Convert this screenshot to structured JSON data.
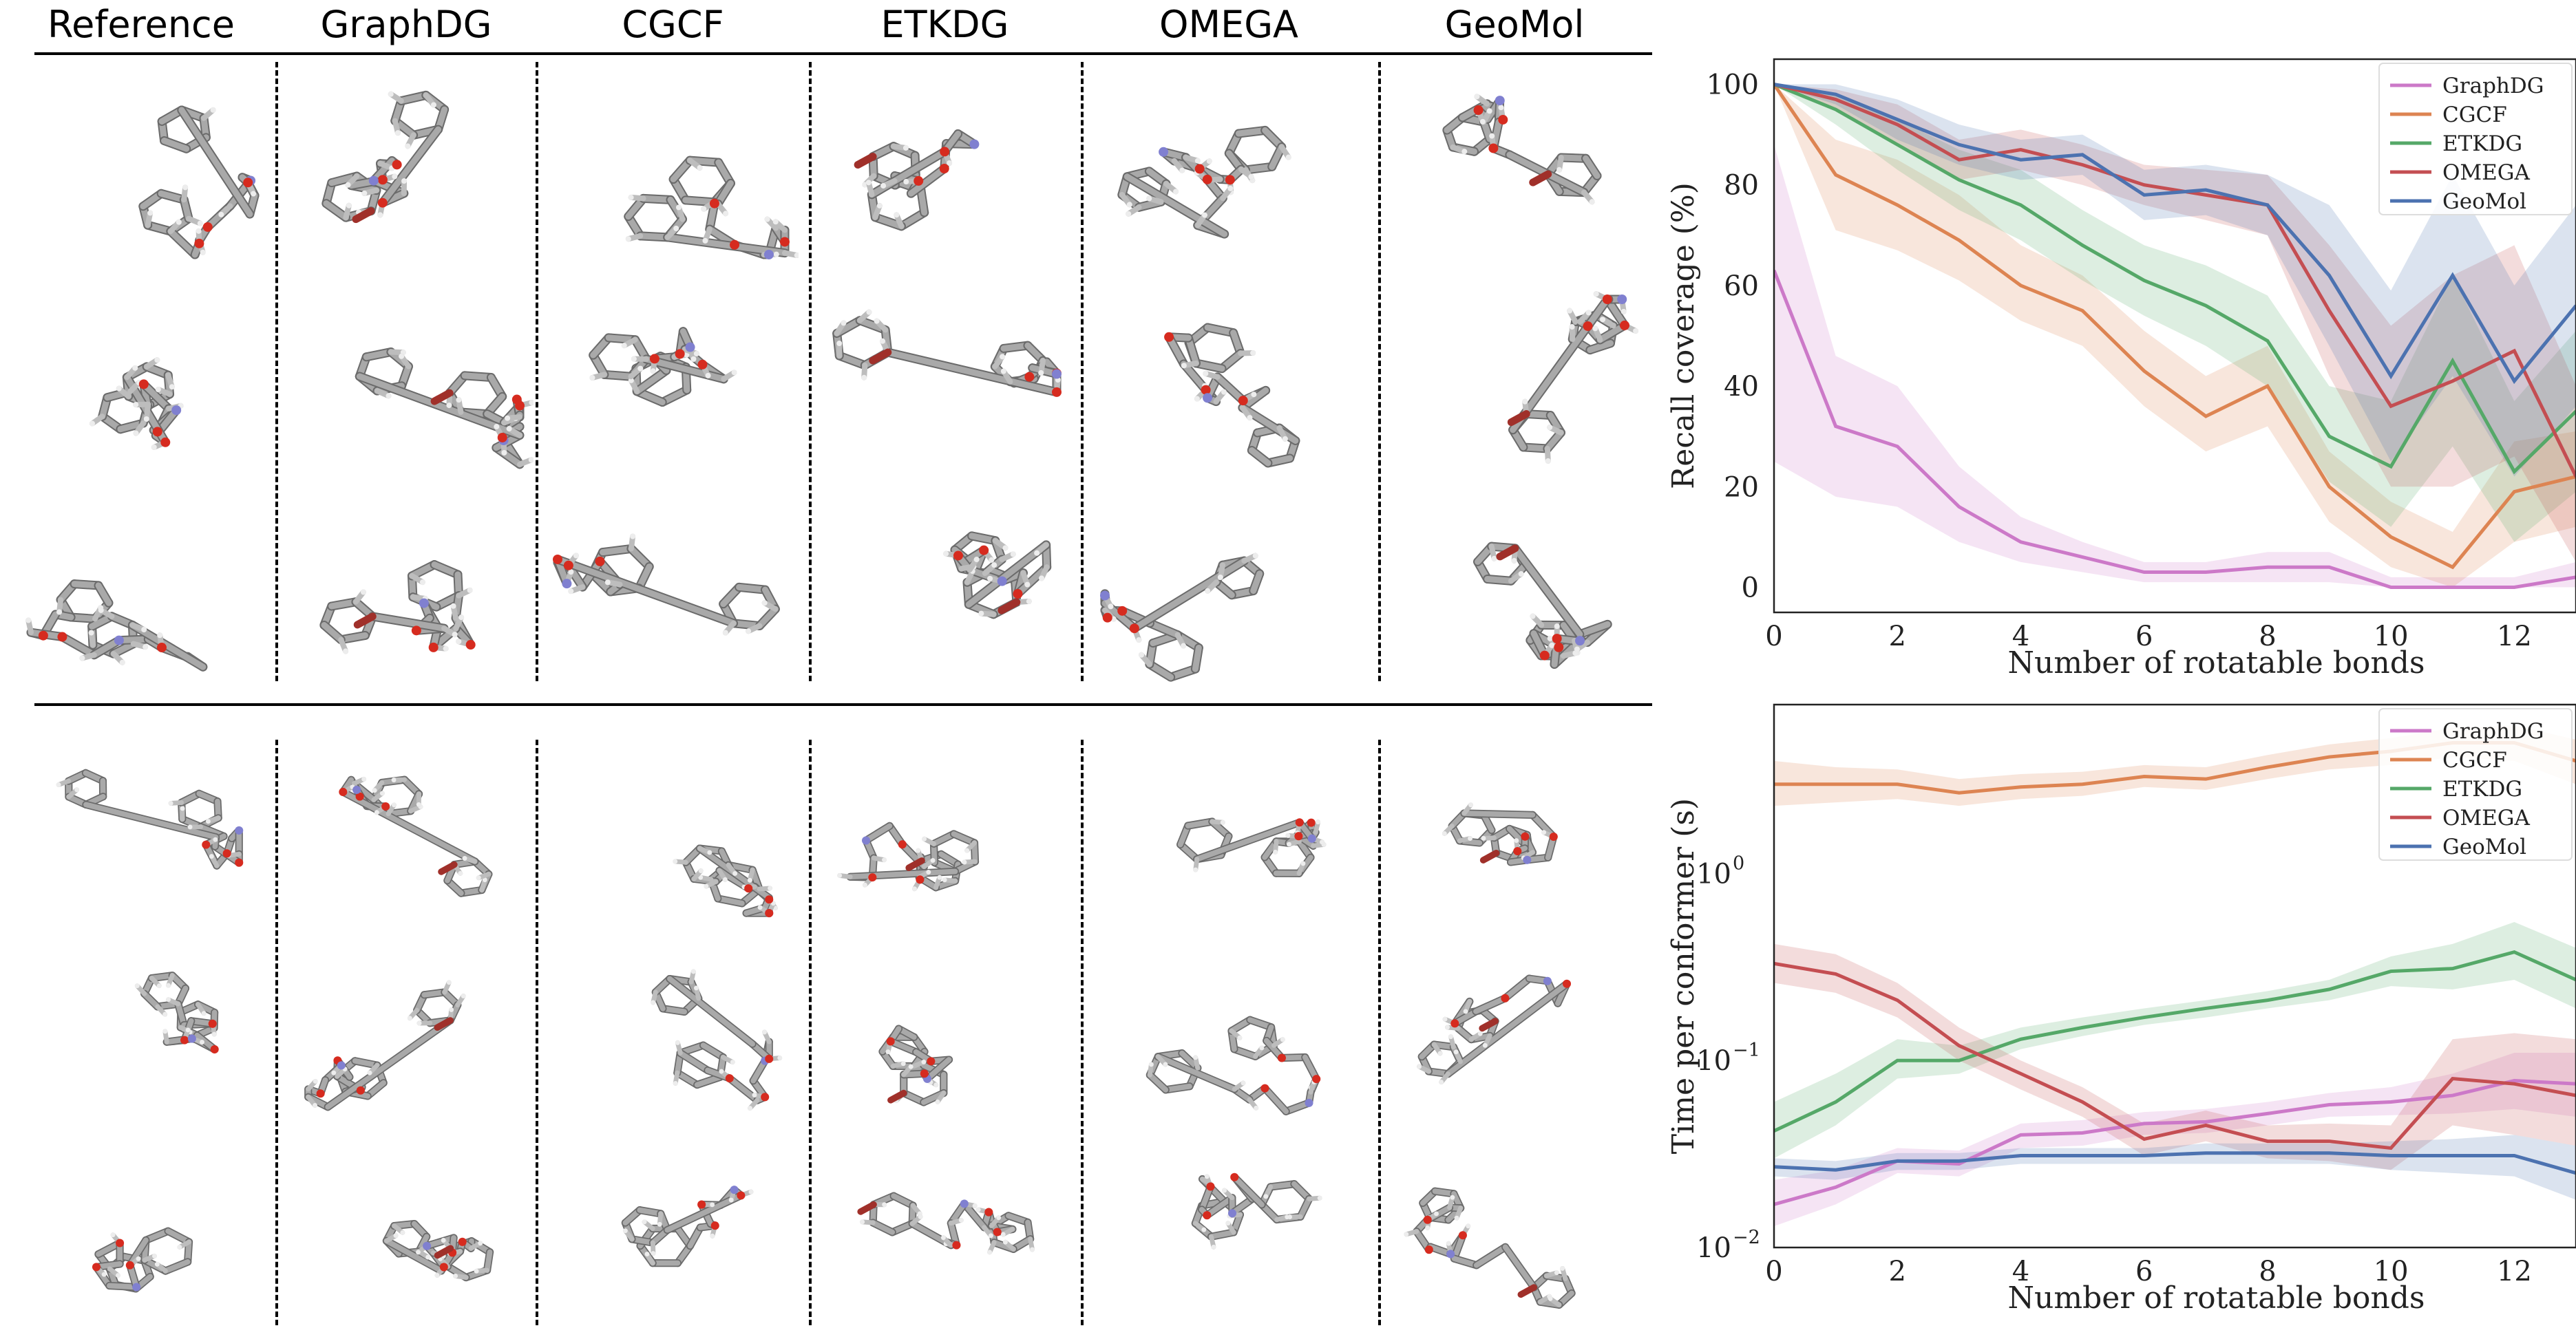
{
  "columns": [
    "Reference",
    "GraphDG",
    "CGCF",
    "ETKDG",
    "OMEGA",
    "GeoMol"
  ],
  "colors": {
    "GraphDG": "#cc79c8",
    "CGCF": "#dd8452",
    "ETKDG": "#55a868",
    "OMEGA": "#c44e52",
    "GeoMol": "#4c72b0",
    "carbon": "#a9a9a9",
    "hydrogen": "#ededed",
    "oxygen": "#d62b1f",
    "nitrogen": "#8080d0",
    "bromine": "#a0302a"
  },
  "chart_data": [
    {
      "type": "line",
      "xlabel": "Number of rotatable bonds",
      "ylabel": "Recall coverage (%)",
      "xlim": [
        0,
        13
      ],
      "ylim": [
        -5,
        105
      ],
      "xticks": [
        0,
        2,
        4,
        6,
        8,
        10,
        12
      ],
      "yticks": [
        0,
        20,
        40,
        60,
        80,
        100
      ],
      "legend": "top-right",
      "grid": false,
      "x": [
        0,
        1,
        2,
        3,
        4,
        5,
        6,
        7,
        8,
        9,
        10,
        11,
        12,
        13
      ],
      "series": [
        {
          "name": "GraphDG",
          "values": [
            63,
            32,
            28,
            16,
            9,
            6,
            3,
            3,
            4,
            4,
            0,
            0,
            0,
            2
          ],
          "lower": [
            25,
            18,
            16,
            9,
            5,
            3,
            1,
            1,
            1,
            1,
            0,
            0,
            0,
            0
          ],
          "upper": [
            88,
            46,
            40,
            24,
            14,
            9,
            5,
            5,
            7,
            7,
            2,
            2,
            2,
            5
          ]
        },
        {
          "name": "CGCF",
          "values": [
            100,
            82,
            76,
            69,
            60,
            55,
            43,
            34,
            40,
            20,
            10,
            4,
            19,
            22
          ],
          "lower": [
            100,
            71,
            67,
            61,
            53,
            48,
            36,
            27,
            32,
            13,
            4,
            0,
            9,
            12
          ],
          "upper": [
            100,
            89,
            85,
            78,
            68,
            62,
            51,
            42,
            48,
            27,
            17,
            11,
            29,
            31
          ]
        },
        {
          "name": "ETKDG",
          "values": [
            100,
            95,
            88,
            81,
            76,
            68,
            61,
            56,
            49,
            30,
            24,
            45,
            23,
            35
          ],
          "lower": [
            100,
            92,
            83,
            75,
            69,
            61,
            54,
            48,
            40,
            21,
            12,
            28,
            9,
            19
          ],
          "upper": [
            100,
            98,
            93,
            87,
            83,
            75,
            68,
            64,
            58,
            40,
            37,
            62,
            37,
            51
          ]
        },
        {
          "name": "OMEGA",
          "values": [
            100,
            97,
            92,
            85,
            87,
            84,
            80,
            78,
            76,
            55,
            36,
            41,
            47,
            22
          ],
          "lower": [
            100,
            95,
            88,
            81,
            83,
            80,
            76,
            73,
            70,
            42,
            20,
            20,
            26,
            5
          ],
          "upper": [
            100,
            99,
            96,
            89,
            91,
            88,
            84,
            83,
            82,
            68,
            52,
            62,
            68,
            40
          ]
        },
        {
          "name": "GeoMol",
          "values": [
            100,
            98,
            93,
            88,
            85,
            86,
            78,
            79,
            76,
            62,
            42,
            62,
            41,
            56
          ],
          "lower": [
            100,
            96,
            89,
            84,
            81,
            82,
            73,
            74,
            70,
            48,
            25,
            42,
            22,
            36
          ],
          "upper": [
            100,
            100,
            97,
            92,
            89,
            90,
            83,
            84,
            82,
            76,
            59,
            82,
            60,
            76
          ]
        }
      ]
    },
    {
      "type": "line",
      "xlabel": "Number of rotatable bonds",
      "ylabel": "Time per conformer (s)",
      "yscale": "log",
      "xlim": [
        0,
        13
      ],
      "ylim": [
        0.01,
        8
      ],
      "xticks": [
        0,
        2,
        4,
        6,
        8,
        10,
        12
      ],
      "yticks": [
        0.01,
        0.1,
        1
      ],
      "ytick_labels": [
        "10",
        "10",
        "10"
      ],
      "ytick_exponents": [
        "−2",
        "−1",
        "0"
      ],
      "legend": "top-right",
      "grid": false,
      "x": [
        0,
        1,
        2,
        3,
        4,
        5,
        6,
        7,
        8,
        9,
        10,
        11,
        12,
        13
      ],
      "series": [
        {
          "name": "GraphDG",
          "values": [
            0.017,
            0.021,
            0.029,
            0.028,
            0.04,
            0.041,
            0.046,
            0.047,
            0.052,
            0.058,
            0.06,
            0.065,
            0.078,
            0.075
          ],
          "lower": [
            0.013,
            0.017,
            0.025,
            0.024,
            0.034,
            0.035,
            0.04,
            0.041,
            0.045,
            0.05,
            0.051,
            0.052,
            0.055,
            0.05
          ],
          "upper": [
            0.023,
            0.026,
            0.034,
            0.033,
            0.046,
            0.048,
            0.053,
            0.055,
            0.06,
            0.067,
            0.072,
            0.085,
            0.11,
            0.11
          ]
        },
        {
          "name": "CGCF",
          "values": [
            3.0,
            3.0,
            3.0,
            2.7,
            2.9,
            3.0,
            3.3,
            3.2,
            3.7,
            4.2,
            4.5,
            5.0,
            5.0,
            4.0
          ],
          "lower": [
            2.3,
            2.4,
            2.5,
            2.3,
            2.5,
            2.6,
            2.9,
            2.8,
            3.2,
            3.6,
            3.8,
            4.2,
            4.0,
            3.0
          ],
          "upper": [
            4.0,
            3.7,
            3.6,
            3.2,
            3.4,
            3.5,
            3.8,
            3.7,
            4.3,
            4.9,
            5.3,
            6.0,
            6.2,
            5.2
          ]
        },
        {
          "name": "ETKDG",
          "values": [
            0.042,
            0.06,
            0.1,
            0.1,
            0.13,
            0.15,
            0.17,
            0.19,
            0.21,
            0.24,
            0.3,
            0.31,
            0.38,
            0.27
          ],
          "lower": [
            0.03,
            0.045,
            0.08,
            0.085,
            0.115,
            0.135,
            0.155,
            0.17,
            0.19,
            0.21,
            0.25,
            0.24,
            0.27,
            0.19
          ],
          "upper": [
            0.06,
            0.085,
            0.13,
            0.12,
            0.15,
            0.17,
            0.19,
            0.21,
            0.235,
            0.27,
            0.36,
            0.42,
            0.55,
            0.4
          ]
        },
        {
          "name": "OMEGA",
          "values": [
            0.33,
            0.29,
            0.21,
            0.12,
            0.085,
            0.06,
            0.038,
            0.045,
            0.037,
            0.037,
            0.034,
            0.08,
            0.075,
            0.065
          ],
          "lower": [
            0.26,
            0.23,
            0.17,
            0.1,
            0.07,
            0.05,
            0.031,
            0.037,
            0.03,
            0.029,
            0.026,
            0.045,
            0.04,
            0.035
          ],
          "upper": [
            0.42,
            0.37,
            0.26,
            0.15,
            0.1,
            0.072,
            0.046,
            0.054,
            0.045,
            0.046,
            0.045,
            0.13,
            0.14,
            0.13
          ]
        },
        {
          "name": "GeoMol",
          "values": [
            0.027,
            0.026,
            0.029,
            0.029,
            0.031,
            0.031,
            0.031,
            0.032,
            0.032,
            0.032,
            0.031,
            0.031,
            0.031,
            0.025
          ],
          "lower": [
            0.024,
            0.023,
            0.026,
            0.026,
            0.028,
            0.028,
            0.028,
            0.028,
            0.028,
            0.028,
            0.026,
            0.025,
            0.024,
            0.018
          ],
          "upper": [
            0.03,
            0.029,
            0.032,
            0.032,
            0.034,
            0.034,
            0.034,
            0.036,
            0.036,
            0.036,
            0.037,
            0.038,
            0.04,
            0.035
          ]
        }
      ]
    }
  ]
}
